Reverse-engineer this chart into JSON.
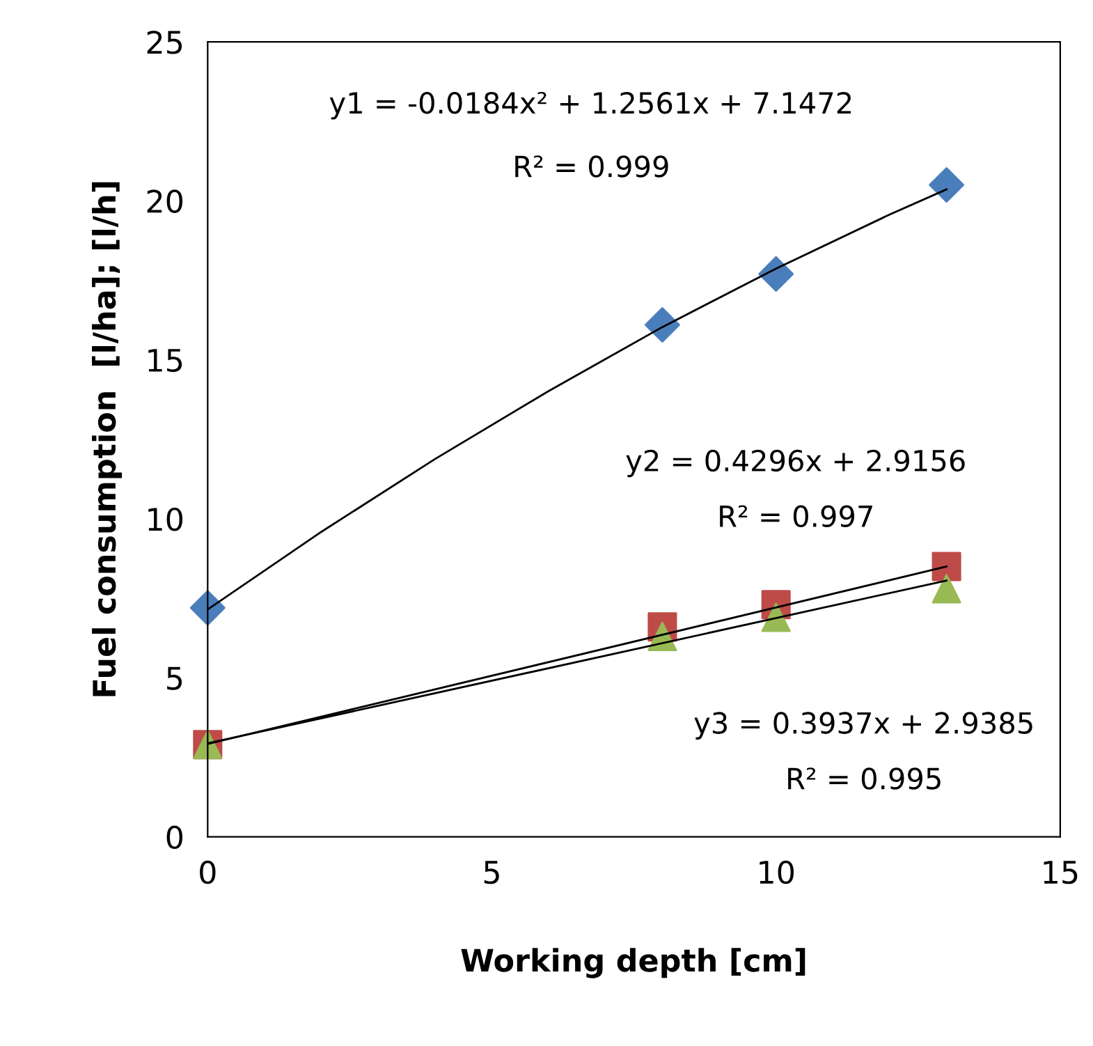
{
  "chart_data": {
    "type": "scatter",
    "xlabel": "Working depth [cm]",
    "ylabel": "Fuel consumption  [l/ha]; [l/h]",
    "x": [
      0,
      8,
      10,
      13
    ],
    "series": [
      {
        "color": "#4a7ebb",
        "marker": "diamond",
        "values": [
          7.2,
          16.1,
          17.7,
          20.5
        ]
      },
      {
        "color": "#be4b48",
        "marker": "square",
        "values": [
          2.9,
          6.6,
          7.3,
          8.5
        ]
      },
      {
        "color": "#98b954",
        "marker": "triangle",
        "values": [
          2.9,
          6.3,
          6.9,
          7.8
        ]
      },
      {
        "type": "line",
        "color": "#000000",
        "marker": "none",
        "x": [
          0,
          2,
          4,
          6,
          8,
          10,
          12,
          13
        ],
        "values": [
          7.15,
          9.59,
          11.88,
          14.02,
          16.03,
          17.87,
          19.57,
          20.36
        ]
      },
      {
        "type": "line",
        "color": "#000000",
        "marker": "none",
        "x": [
          0,
          13
        ],
        "values": [
          2.92,
          8.5
        ]
      },
      {
        "type": "line",
        "color": "#000000",
        "marker": "none",
        "x": [
          0,
          13
        ],
        "values": [
          2.94,
          8.06
        ]
      }
    ],
    "annotations": [
      "y1 = -0.0184x² + 1.2561x + 7.1472",
      "R² = 0.999",
      "y2 = 0.4296x + 2.9156",
      "R² = 0.997",
      "y3 = 0.3937x + 2.9385",
      "R² = 0.995"
    ],
    "xlim": [
      0,
      15
    ],
    "xticks": [
      0,
      5,
      10,
      15
    ],
    "ylim": [
      0,
      25
    ],
    "yticks": [
      0,
      5,
      10,
      15,
      20,
      25
    ],
    "grid": false,
    "legend": false
  }
}
